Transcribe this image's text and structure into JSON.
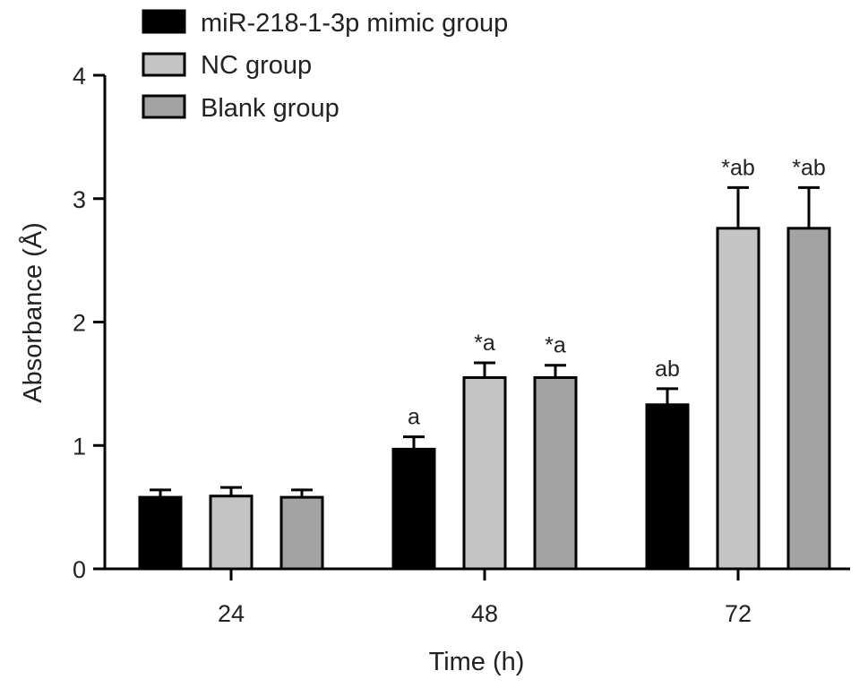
{
  "chart_data": {
    "type": "bar",
    "xlabel": "Time (h)",
    "ylabel": "Absorbance (Å)",
    "ylim": [
      0,
      4
    ],
    "yticks": [
      "0",
      "1",
      "2",
      "3",
      "4"
    ],
    "categories": [
      "24",
      "48",
      "72"
    ],
    "legend_position": "top-left",
    "grid": false,
    "series": [
      {
        "name": "miR-218-1-3p mimic group",
        "color": "#000000",
        "values": [
          0.58,
          0.97,
          1.33
        ],
        "errors": [
          0.06,
          0.1,
          0.13
        ],
        "annotations": [
          "",
          "a",
          "ab"
        ]
      },
      {
        "name": "NC group",
        "color": "#c4c4c4",
        "values": [
          0.59,
          1.55,
          2.76
        ],
        "errors": [
          0.07,
          0.12,
          0.33
        ],
        "annotations": [
          "",
          "*a",
          "*ab"
        ]
      },
      {
        "name": "Blank group",
        "color": "#a3a3a3",
        "values": [
          0.58,
          1.55,
          2.76
        ],
        "errors": [
          0.06,
          0.1,
          0.33
        ],
        "annotations": [
          "",
          "*a",
          "*ab"
        ]
      }
    ]
  }
}
